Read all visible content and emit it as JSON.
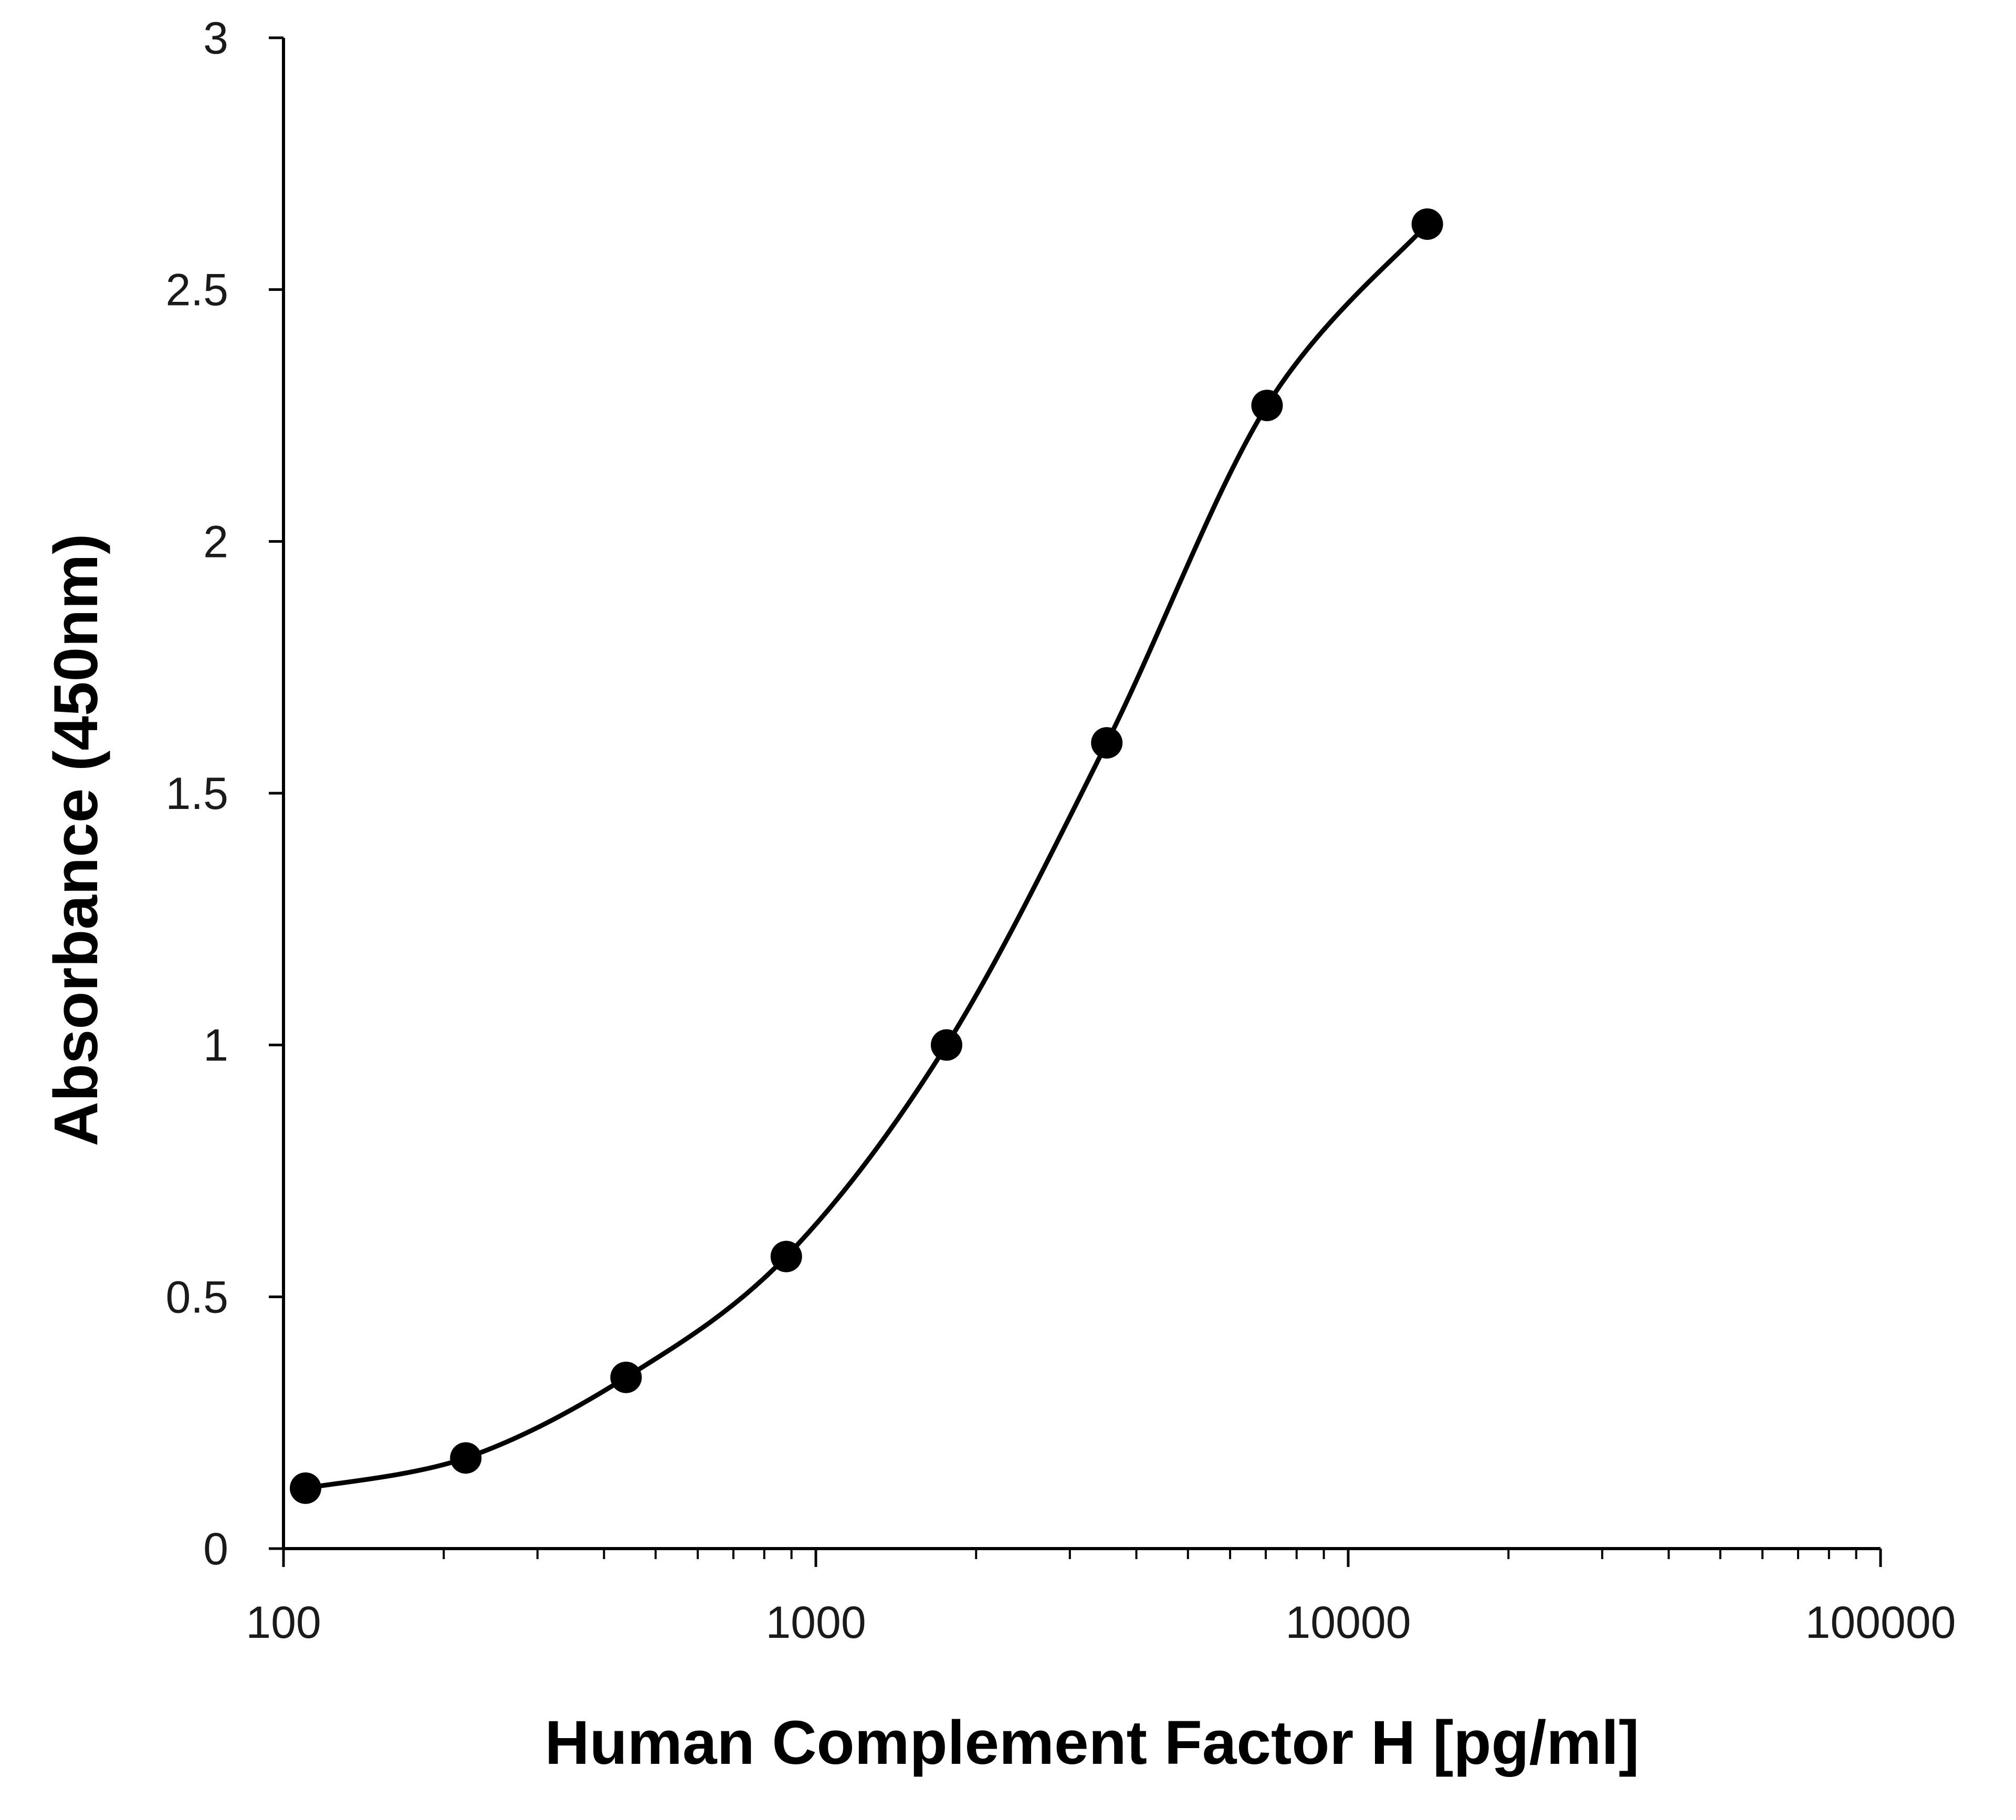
{
  "chart_data": {
    "type": "scatter",
    "title": "",
    "xlabel": "Human Complement Factor H [pg/ml]",
    "ylabel": "Absorbance (450nm)",
    "x_scale": "log",
    "xlim": [
      100,
      100000
    ],
    "ylim": [
      0,
      3
    ],
    "x_ticks": [
      100,
      1000,
      10000,
      100000
    ],
    "x_tick_labels": [
      "100",
      "1000",
      "10000",
      "100000"
    ],
    "y_ticks": [
      0,
      0.5,
      1,
      1.5,
      2,
      2.5,
      3
    ],
    "y_tick_labels": [
      "0",
      "0.5",
      "1",
      "1.5",
      "2",
      "2.5",
      "3"
    ],
    "grid": false,
    "legend": "none",
    "series": [
      {
        "x": [
          110,
          220,
          440,
          880,
          1760,
          3520,
          7040,
          14080
        ],
        "y": [
          0.12,
          0.18,
          0.34,
          0.58,
          1.0,
          1.6,
          2.27,
          2.63
        ],
        "marker": "filled-circle",
        "line": "smooth",
        "color": "#000000"
      }
    ]
  }
}
